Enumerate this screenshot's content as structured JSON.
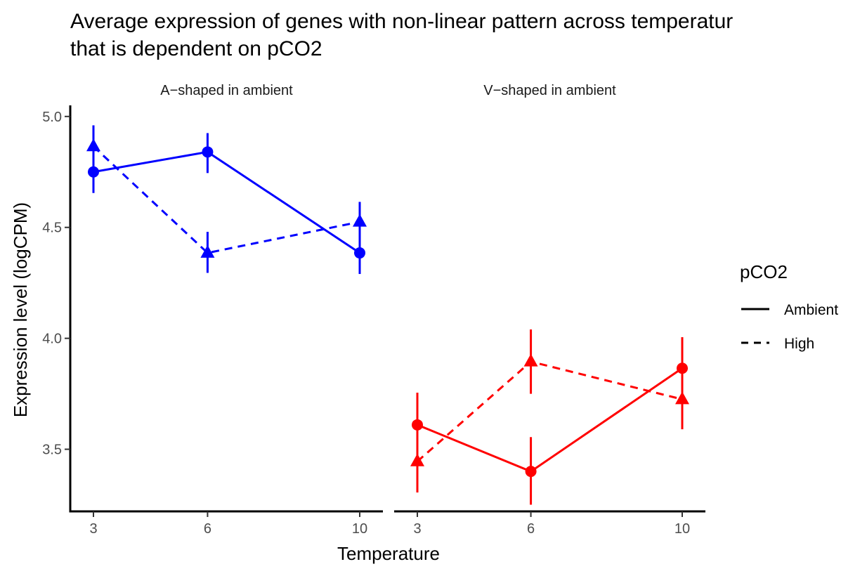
{
  "chart_data": {
    "type": "line",
    "title_line1": "Average expression of genes with non-linear pattern across temperatur",
    "title_line2": "that is dependent on pCO2",
    "xlabel": "Temperature",
    "ylabel": "Expression level (logCPM)",
    "ylim": [
      3.22,
      5.05
    ],
    "y_ticks": [
      "3.5",
      "4.0",
      "4.5",
      "5.0"
    ],
    "x_ticks": [
      "3",
      "6",
      "10"
    ],
    "x_values": [
      3,
      6,
      10
    ],
    "grid": false,
    "legend": {
      "title": "pCO2",
      "position": "right",
      "entries": [
        {
          "label": "Ambient",
          "linetype": "solid"
        },
        {
          "label": "High",
          "linetype": "dashed"
        }
      ]
    },
    "panels": [
      {
        "strip": "A−shaped in ambient",
        "color": "#0000ff",
        "series": [
          {
            "name": "Ambient",
            "linetype": "solid",
            "shape": "circle",
            "values": [
              4.75,
              4.84,
              4.385
            ],
            "error_low": [
              4.655,
              4.745,
              4.29
            ],
            "error_high": [
              4.845,
              4.925,
              4.48
            ]
          },
          {
            "name": "High",
            "linetype": "dashed",
            "shape": "triangle",
            "values": [
              4.865,
              4.385,
              4.525
            ],
            "error_low": [
              4.765,
              4.295,
              4.43
            ],
            "error_high": [
              4.96,
              4.48,
              4.615
            ]
          }
        ]
      },
      {
        "strip": "V−shaped in ambient",
        "color": "#ff0000",
        "series": [
          {
            "name": "Ambient",
            "linetype": "solid",
            "shape": "circle",
            "values": [
              3.61,
              3.4,
              3.865
            ],
            "error_low": [
              3.47,
              3.25,
              3.73
            ],
            "error_high": [
              3.755,
              3.555,
              4.005
            ]
          },
          {
            "name": "High",
            "linetype": "dashed",
            "shape": "triangle",
            "values": [
              3.445,
              3.895,
              3.725
            ],
            "error_low": [
              3.305,
              3.75,
              3.59
            ],
            "error_high": [
              3.585,
              4.04,
              3.865
            ]
          }
        ]
      }
    ]
  }
}
